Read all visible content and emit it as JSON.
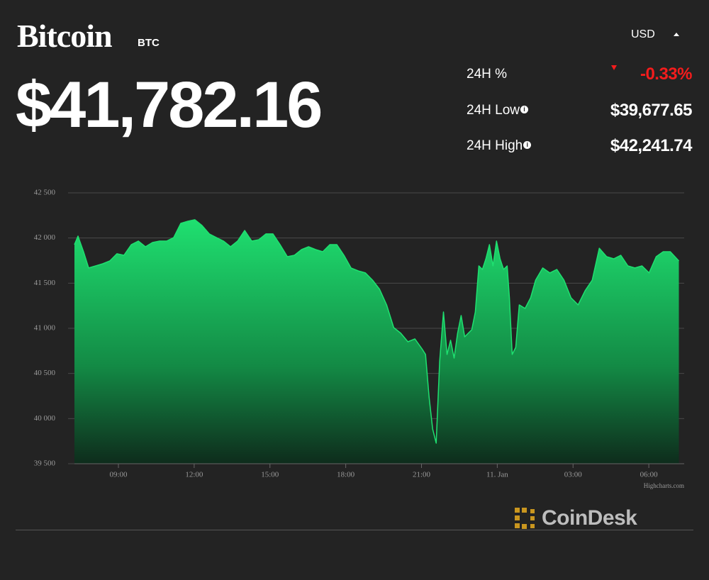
{
  "header": {
    "title": "Bitcoin",
    "symbol": "BTC",
    "price": "$41,782.16",
    "currency": "USD"
  },
  "stats": [
    {
      "label": "24H %",
      "value": "-0.33%"
    },
    {
      "label": "24H Low",
      "value": "$39,677.65"
    },
    {
      "label": "24H High",
      "value": "$42,241.74"
    }
  ],
  "chart_data": {
    "type": "area",
    "color": "#1fe070",
    "grid": true,
    "x": [
      7.26,
      7.4,
      7.62,
      7.82,
      8.1,
      8.38,
      8.66,
      8.94,
      9.22,
      9.51,
      9.79,
      10.07,
      10.35,
      10.63,
      10.91,
      11.19,
      11.47,
      11.75,
      12.03,
      12.31,
      12.6,
      12.88,
      13.16,
      13.44,
      13.72,
      14.0,
      14.28,
      14.56,
      14.84,
      15.12,
      15.4,
      15.69,
      15.97,
      16.25,
      16.53,
      16.81,
      17.09,
      17.37,
      17.65,
      17.93,
      18.21,
      18.49,
      18.78,
      19.06,
      19.34,
      19.62,
      19.9,
      20.18,
      20.46,
      20.74,
      21.02,
      21.16,
      21.3,
      21.44,
      21.58,
      21.72,
      21.87,
      22.01,
      22.15,
      22.29,
      22.43,
      22.57,
      22.71,
      22.85,
      22.99,
      23.13,
      23.27,
      23.41,
      23.55,
      23.69,
      23.83,
      23.97,
      24.11,
      24.25,
      24.39,
      24.48,
      24.59,
      24.73,
      24.87,
      25.1,
      25.32,
      25.52,
      25.8,
      26.08,
      26.36,
      26.64,
      26.92,
      27.2,
      27.48,
      27.76,
      28.04,
      28.33,
      28.61,
      28.89,
      29.17,
      29.45,
      29.73,
      30.01,
      30.29,
      30.57,
      30.85,
      31.19
    ],
    "values": [
      41927,
      42021,
      41848,
      41668,
      41691,
      41715,
      41746,
      41825,
      41809,
      41927,
      41966,
      41903,
      41950,
      41966,
      41966,
      42005,
      42162,
      42186,
      42202,
      42139,
      42045,
      42005,
      41966,
      41903,
      41966,
      42084,
      41966,
      41982,
      42045,
      42045,
      41927,
      41793,
      41809,
      41872,
      41903,
      41872,
      41848,
      41927,
      41927,
      41809,
      41668,
      41636,
      41613,
      41534,
      41432,
      41259,
      41008,
      40945,
      40851,
      40882,
      40772,
      40710,
      40238,
      39885,
      39728,
      40631,
      41181,
      40710,
      40867,
      40670,
      40945,
      41141,
      40906,
      40945,
      40984,
      41181,
      41691,
      41652,
      41770,
      41927,
      41691,
      41966,
      41770,
      41652,
      41691,
      41338,
      40710,
      40788,
      41259,
      41220,
      41338,
      41534,
      41668,
      41613,
      41652,
      41534,
      41338,
      41259,
      41417,
      41534,
      41887,
      41793,
      41770,
      41809,
      41691,
      41668,
      41691,
      41613,
      41793,
      41848,
      41848,
      41746
    ],
    "xlim": [
      7.26,
      31.4
    ],
    "ylim": [
      39500,
      42500
    ],
    "xticks": [
      {
        "value": 9,
        "label": "09:00"
      },
      {
        "value": 12,
        "label": "12:00"
      },
      {
        "value": 15,
        "label": "15:00"
      },
      {
        "value": 18,
        "label": "18:00"
      },
      {
        "value": 21,
        "label": "21:00"
      },
      {
        "value": 24,
        "label": "11. Jan"
      },
      {
        "value": 27,
        "label": "03:00"
      },
      {
        "value": 30,
        "label": "06:00"
      }
    ],
    "yticks": [
      {
        "value": 39500,
        "label": "39 500"
      },
      {
        "value": 40000,
        "label": "40 000"
      },
      {
        "value": 40500,
        "label": "40 500"
      },
      {
        "value": 41000,
        "label": "41 000"
      },
      {
        "value": 41500,
        "label": "41 500"
      },
      {
        "value": 42000,
        "label": "42 000"
      },
      {
        "value": 42500,
        "label": "42 500"
      }
    ],
    "credit": "Highcharts.com"
  },
  "brand": "CoinDesk"
}
